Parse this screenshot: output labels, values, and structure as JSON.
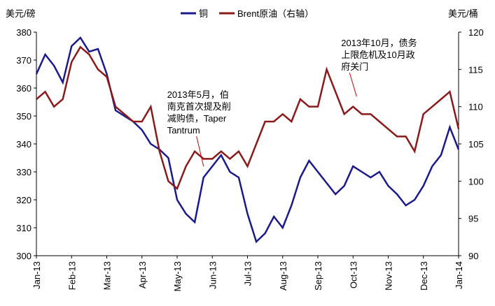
{
  "chart_data": {
    "type": "line",
    "y_label": "美元/磅",
    "y2_label": "美元/桶",
    "x": [
      0,
      0.25,
      0.5,
      0.75,
      1,
      1.25,
      1.5,
      1.75,
      2,
      2.25,
      2.5,
      2.75,
      3,
      3.25,
      3.5,
      3.75,
      4,
      4.25,
      4.5,
      4.75,
      5,
      5.25,
      5.5,
      5.75,
      6,
      6.25,
      6.5,
      6.75,
      7,
      7.25,
      7.5,
      7.75,
      8,
      8.25,
      8.5,
      8.75,
      9,
      9.25,
      9.5,
      9.75,
      10,
      10.25,
      10.5,
      10.75,
      11,
      11.25,
      11.5,
      11.75,
      12
    ],
    "xlim": [
      0,
      12
    ],
    "xticks": [
      {
        "value": 0,
        "label": "Jan-13"
      },
      {
        "value": 1,
        "label": "Feb-13"
      },
      {
        "value": 2,
        "label": "Mar-13"
      },
      {
        "value": 3,
        "label": "Apr-13"
      },
      {
        "value": 4,
        "label": "May-13"
      },
      {
        "value": 5,
        "label": "Jun-13"
      },
      {
        "value": 6,
        "label": "Jul-13"
      },
      {
        "value": 7,
        "label": "Aug-13"
      },
      {
        "value": 8,
        "label": "Sep-13"
      },
      {
        "value": 9,
        "label": "Oct-13"
      },
      {
        "value": 10,
        "label": "Nov-13"
      },
      {
        "value": 11,
        "label": "Dec-13"
      },
      {
        "value": 12,
        "label": "Jan-14"
      }
    ],
    "ylim": [
      300,
      380
    ],
    "yticks": [
      300,
      310,
      320,
      330,
      340,
      350,
      360,
      370,
      380
    ],
    "y2lim": [
      90,
      120
    ],
    "y2ticks": [
      90,
      95,
      100,
      105,
      110,
      115,
      120
    ],
    "series": [
      {
        "name": "铜",
        "color": "#1a1a8c",
        "values": [
          365,
          372,
          368,
          362,
          375,
          378,
          373,
          374,
          365,
          352,
          350,
          348,
          345,
          340,
          338,
          335,
          320,
          315,
          312,
          328,
          332,
          336,
          330,
          328,
          315,
          305,
          308,
          314,
          310,
          318,
          328,
          334,
          330,
          326,
          322,
          325,
          332,
          330,
          328,
          330,
          325,
          322,
          318,
          320,
          325,
          332,
          336,
          346,
          338
        ]
      },
      {
        "name": "Brent原油（右轴）",
        "color": "#8b1a1a",
        "axis": "y2",
        "values": [
          111,
          112,
          110,
          111,
          116,
          118,
          117,
          115,
          114,
          110,
          109,
          108,
          108,
          110,
          104,
          100,
          99,
          102,
          104,
          103,
          103,
          104,
          103,
          104,
          102,
          105,
          108,
          108,
          109,
          108,
          111,
          110,
          110,
          115,
          112,
          109,
          110,
          109,
          109,
          108,
          107,
          106,
          106,
          104,
          109,
          110,
          111,
          112,
          107
        ]
      }
    ],
    "annotations": [
      {
        "lines": [
          "2013年5月，伯",
          "南克首次提及削",
          "减购债，Taper",
          "Tantrum"
        ],
        "x": 4.75,
        "y": 331
      },
      {
        "lines": [
          "2013年10月，债务",
          "上限危机及10月政",
          "府关门"
        ],
        "x": 9.1,
        "y": 356
      }
    ]
  }
}
